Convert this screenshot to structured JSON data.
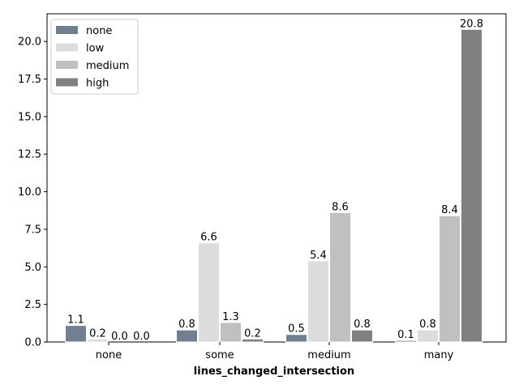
{
  "chart_data": {
    "type": "bar",
    "title": "",
    "xlabel": "lines_changed_intersection",
    "ylabel": "",
    "categories": [
      "none",
      "some",
      "medium",
      "many"
    ],
    "series": [
      {
        "name": "none",
        "color": "#708090",
        "values": [
          1.1,
          0.8,
          0.5,
          0.1
        ],
        "labels": [
          "1.1",
          "0.8",
          "0.5",
          "0.1"
        ]
      },
      {
        "name": "low",
        "color": "#dcdcdc",
        "values": [
          0.2,
          6.6,
          5.4,
          0.8
        ],
        "labels": [
          "0.2",
          "6.6",
          "5.4",
          "0.8"
        ]
      },
      {
        "name": "medium",
        "color": "#c0c0c0",
        "values": [
          0.0,
          1.3,
          8.6,
          8.4
        ],
        "labels": [
          "0.0",
          "1.3",
          "8.6",
          "8.4"
        ]
      },
      {
        "name": "high",
        "color": "#808080",
        "values": [
          0.0,
          0.2,
          0.8,
          20.8
        ],
        "labels": [
          "0.0",
          "0.2",
          "0.8",
          "20.8"
        ]
      }
    ],
    "ylim": [
      0,
      21.84
    ],
    "yticks": [
      "0.0",
      "2.5",
      "5.0",
      "7.5",
      "10.0",
      "12.5",
      "15.0",
      "17.5",
      "20.0"
    ],
    "legend_position": "top-left",
    "grid": false
  }
}
